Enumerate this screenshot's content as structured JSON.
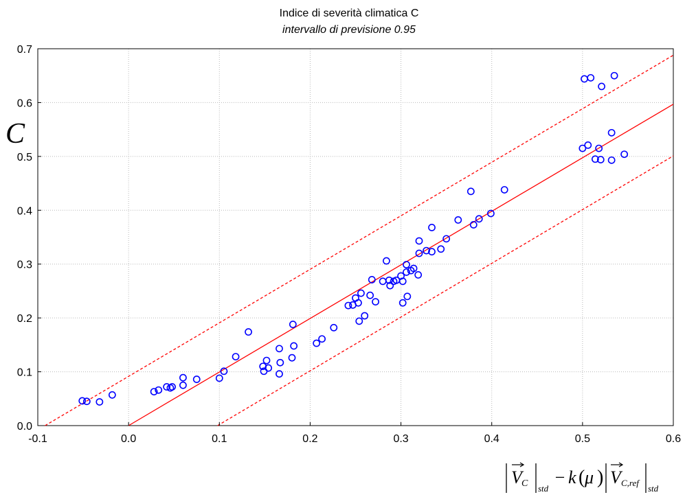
{
  "chart_data": {
    "type": "scatter",
    "title": "Indice di severità climatica C",
    "subtitle": "intervallo di previsione 0.95",
    "ylabel": "C",
    "xlabel": {
      "v1": "V",
      "v1_sub": "C",
      "std1": "std",
      "minus": "−",
      "k": "k",
      "mu": "μ",
      "v2": "V",
      "v2_sub": "C,ref",
      "std2": "std"
    },
    "xlim": [
      -0.1,
      0.6
    ],
    "ylim": [
      0.0,
      0.7
    ],
    "x_ticks": [
      -0.1,
      0.0,
      0.1,
      0.2,
      0.3,
      0.4,
      0.5,
      0.6
    ],
    "x_tick_labels": [
      "-0.1",
      "0.0",
      "0.1",
      "0.2",
      "0.3",
      "0.4",
      "0.5",
      "0.6"
    ],
    "y_ticks": [
      0.0,
      0.1,
      0.2,
      0.3,
      0.4,
      0.5,
      0.6,
      0.7
    ],
    "y_tick_labels": [
      "0.0",
      "0.1",
      "0.2",
      "0.3",
      "0.4",
      "0.5",
      "0.6",
      "0.7"
    ],
    "grid": true,
    "marker_color": "#0000ff",
    "fit_color": "#ff0000",
    "fit_line": {
      "x": [
        0.0,
        0.6
      ],
      "y": [
        0.0,
        0.597
      ]
    },
    "prediction_upper": {
      "x": [
        -0.092,
        0.6
      ],
      "y": [
        0.0,
        0.688
      ]
    },
    "prediction_lower": {
      "x": [
        0.098,
        0.6
      ],
      "y": [
        0.0,
        0.501
      ]
    },
    "points": [
      {
        "x": -0.051,
        "y": 0.046
      },
      {
        "x": -0.046,
        "y": 0.045
      },
      {
        "x": -0.032,
        "y": 0.044
      },
      {
        "x": -0.018,
        "y": 0.057
      },
      {
        "x": 0.028,
        "y": 0.063
      },
      {
        "x": 0.033,
        "y": 0.066
      },
      {
        "x": 0.042,
        "y": 0.072
      },
      {
        "x": 0.046,
        "y": 0.07
      },
      {
        "x": 0.048,
        "y": 0.072
      },
      {
        "x": 0.06,
        "y": 0.089
      },
      {
        "x": 0.06,
        "y": 0.075
      },
      {
        "x": 0.075,
        "y": 0.086
      },
      {
        "x": 0.1,
        "y": 0.088
      },
      {
        "x": 0.105,
        "y": 0.101
      },
      {
        "x": 0.118,
        "y": 0.128
      },
      {
        "x": 0.132,
        "y": 0.174
      },
      {
        "x": 0.148,
        "y": 0.11
      },
      {
        "x": 0.149,
        "y": 0.101
      },
      {
        "x": 0.152,
        "y": 0.121
      },
      {
        "x": 0.154,
        "y": 0.107
      },
      {
        "x": 0.166,
        "y": 0.143
      },
      {
        "x": 0.167,
        "y": 0.117
      },
      {
        "x": 0.166,
        "y": 0.096
      },
      {
        "x": 0.18,
        "y": 0.126
      },
      {
        "x": 0.181,
        "y": 0.188
      },
      {
        "x": 0.182,
        "y": 0.148
      },
      {
        "x": 0.207,
        "y": 0.153
      },
      {
        "x": 0.213,
        "y": 0.161
      },
      {
        "x": 0.226,
        "y": 0.182
      },
      {
        "x": 0.242,
        "y": 0.223
      },
      {
        "x": 0.247,
        "y": 0.224
      },
      {
        "x": 0.25,
        "y": 0.237
      },
      {
        "x": 0.253,
        "y": 0.228
      },
      {
        "x": 0.254,
        "y": 0.194
      },
      {
        "x": 0.256,
        "y": 0.246
      },
      {
        "x": 0.26,
        "y": 0.204
      },
      {
        "x": 0.266,
        "y": 0.242
      },
      {
        "x": 0.268,
        "y": 0.271
      },
      {
        "x": 0.272,
        "y": 0.23
      },
      {
        "x": 0.28,
        "y": 0.268
      },
      {
        "x": 0.284,
        "y": 0.306
      },
      {
        "x": 0.287,
        "y": 0.27
      },
      {
        "x": 0.288,
        "y": 0.26
      },
      {
        "x": 0.292,
        "y": 0.268
      },
      {
        "x": 0.295,
        "y": 0.27
      },
      {
        "x": 0.3,
        "y": 0.278
      },
      {
        "x": 0.302,
        "y": 0.228
      },
      {
        "x": 0.302,
        "y": 0.268
      },
      {
        "x": 0.306,
        "y": 0.299
      },
      {
        "x": 0.306,
        "y": 0.285
      },
      {
        "x": 0.307,
        "y": 0.24
      },
      {
        "x": 0.311,
        "y": 0.288
      },
      {
        "x": 0.314,
        "y": 0.292
      },
      {
        "x": 0.319,
        "y": 0.28
      },
      {
        "x": 0.32,
        "y": 0.343
      },
      {
        "x": 0.32,
        "y": 0.32
      },
      {
        "x": 0.328,
        "y": 0.325
      },
      {
        "x": 0.334,
        "y": 0.323
      },
      {
        "x": 0.334,
        "y": 0.368
      },
      {
        "x": 0.344,
        "y": 0.328
      },
      {
        "x": 0.35,
        "y": 0.347
      },
      {
        "x": 0.363,
        "y": 0.382
      },
      {
        "x": 0.377,
        "y": 0.435
      },
      {
        "x": 0.38,
        "y": 0.373
      },
      {
        "x": 0.386,
        "y": 0.384
      },
      {
        "x": 0.399,
        "y": 0.394
      },
      {
        "x": 0.414,
        "y": 0.438
      },
      {
        "x": 0.5,
        "y": 0.515
      },
      {
        "x": 0.502,
        "y": 0.644
      },
      {
        "x": 0.506,
        "y": 0.521
      },
      {
        "x": 0.509,
        "y": 0.646
      },
      {
        "x": 0.514,
        "y": 0.495
      },
      {
        "x": 0.518,
        "y": 0.515
      },
      {
        "x": 0.52,
        "y": 0.494
      },
      {
        "x": 0.521,
        "y": 0.63
      },
      {
        "x": 0.532,
        "y": 0.493
      },
      {
        "x": 0.532,
        "y": 0.544
      },
      {
        "x": 0.535,
        "y": 0.65
      },
      {
        "x": 0.546,
        "y": 0.504
      }
    ]
  }
}
